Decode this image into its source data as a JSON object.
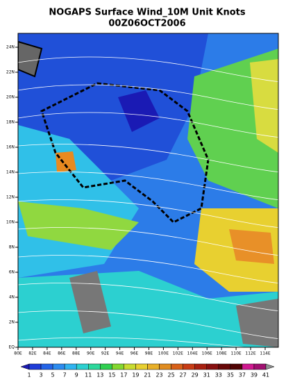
{
  "title": {
    "line1": "NOGAPS Surface Wind_10M Unit Knots",
    "line2": "00Z06OCT2006"
  },
  "map": {
    "lon_labels": [
      "80E",
      "82E",
      "84E",
      "86E",
      "88E",
      "90E",
      "92E",
      "94E",
      "96E",
      "98E",
      "100E",
      "102E",
      "104E",
      "106E",
      "108E",
      "110E",
      "112E",
      "114E"
    ],
    "lat_labels": [
      "EQ",
      "2N",
      "4N",
      "6N",
      "8N",
      "10N",
      "12N",
      "14N",
      "16N",
      "18N",
      "20N",
      "22N",
      "24N"
    ]
  },
  "colorbar": {
    "labels": [
      1,
      3,
      5,
      7,
      9,
      11,
      13,
      15,
      17,
      19,
      21,
      23,
      25,
      27,
      29,
      31,
      33,
      35,
      37,
      39,
      41
    ],
    "colors": [
      "#1a1ab4",
      "#1f3cd8",
      "#2464e8",
      "#2c8cf0",
      "#30b4f0",
      "#2cd0d0",
      "#2cd89c",
      "#30d050",
      "#84d830",
      "#c8dc30",
      "#e8d030",
      "#e8b028",
      "#e08c20",
      "#d86018",
      "#c83c14",
      "#a82010",
      "#881010",
      "#680808",
      "#500404",
      "#d01890",
      "#a01070",
      "#909090"
    ]
  }
}
